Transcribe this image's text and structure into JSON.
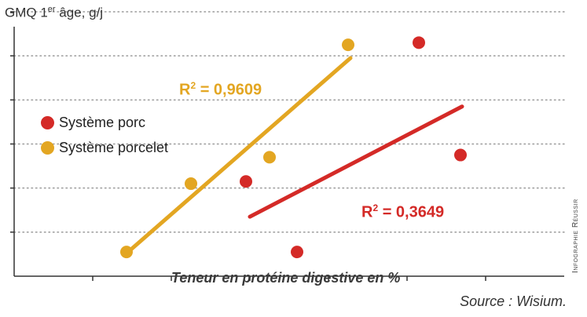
{
  "chart_data": {
    "type": "scatter",
    "title": "",
    "ylabel": {
      "prefix": "GMQ 1",
      "sup": "er",
      "suffix": " âge, g/j"
    },
    "xlabel": "Teneur en protéine digestive en %",
    "source": "Source : Wisium.",
    "credit": "Infographie Réussir",
    "xlim": [
      0,
      7
    ],
    "ylim": [
      0,
      6
    ],
    "x_ticks": [
      1,
      2,
      3,
      4,
      5,
      6
    ],
    "y_ticks": [
      1,
      2,
      3,
      4,
      5,
      6
    ],
    "grid": "horizontal-dotted",
    "legend_position": "left-middle",
    "series": [
      {
        "name": "Système porc",
        "color": "#d42a27",
        "points": [
          {
            "x": 2.95,
            "y": 2.15
          },
          {
            "x": 3.6,
            "y": 0.55
          },
          {
            "x": 5.15,
            "y": 5.3
          },
          {
            "x": 5.68,
            "y": 2.75
          }
        ],
        "trend": {
          "x0": 3.0,
          "y0": 1.35,
          "x1": 5.7,
          "y1": 3.85
        },
        "r2": {
          "prefix": "R",
          "sup": "2",
          "value": " = 0,3649"
        }
      },
      {
        "name": "Système porcelet",
        "color": "#e3a622",
        "points": [
          {
            "x": 1.43,
            "y": 0.55
          },
          {
            "x": 2.25,
            "y": 2.1
          },
          {
            "x": 3.25,
            "y": 2.7
          },
          {
            "x": 4.25,
            "y": 5.25
          }
        ],
        "trend": {
          "x0": 1.45,
          "y0": 0.55,
          "x1": 4.28,
          "y1": 4.95
        },
        "r2": {
          "prefix": "R",
          "sup": "2",
          "value": " = 0,9609"
        }
      }
    ]
  }
}
